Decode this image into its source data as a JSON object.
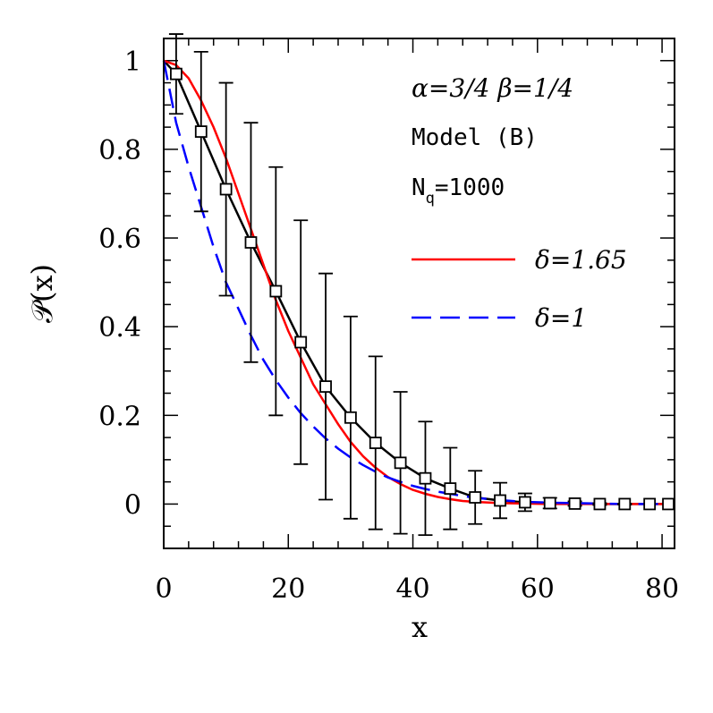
{
  "chart_data": {
    "type": "scatter",
    "xlabel": "x",
    "ylabel": "𝒫(x)",
    "xlim": [
      0,
      82
    ],
    "ylim": [
      -0.1,
      1.05
    ],
    "x_ticks": [
      0,
      20,
      40,
      60,
      80
    ],
    "y_ticks": [
      0,
      0.2,
      0.4,
      0.6,
      0.8,
      1
    ],
    "x_tick_labels": [
      "0",
      "20",
      "40",
      "60",
      "80"
    ],
    "y_tick_labels": [
      "0",
      "0.2",
      "0.4",
      "0.6",
      "0.8",
      "1"
    ],
    "annotations": {
      "params": "α=3/4  β=1/4",
      "model": "Model (B)",
      "nq_prefix": "N",
      "nq_sub": "q",
      "nq_value": "=1000"
    },
    "legend": [
      {
        "label": "δ=1.65",
        "color": "#ff0000",
        "style": "solid"
      },
      {
        "label": "δ=1",
        "color": "#0000ff",
        "style": "dashed"
      }
    ],
    "points": {
      "x": [
        2,
        6,
        10,
        14,
        18,
        22,
        26,
        30,
        34,
        38,
        42,
        46,
        50,
        54,
        58,
        62,
        66,
        70,
        74,
        78,
        81
      ],
      "y": [
        0.97,
        0.84,
        0.71,
        0.59,
        0.48,
        0.365,
        0.265,
        0.195,
        0.138,
        0.093,
        0.058,
        0.035,
        0.015,
        0.008,
        0.004,
        0.002,
        0.001,
        0.0,
        0.0,
        0.0,
        0.0
      ],
      "yerr": [
        0.09,
        0.18,
        0.24,
        0.27,
        0.28,
        0.275,
        0.255,
        0.228,
        0.195,
        0.16,
        0.128,
        0.092,
        0.06,
        0.04,
        0.02,
        0.012,
        0.005,
        0.002,
        0.001,
        0.0,
        0.0
      ]
    },
    "series": [
      {
        "color": "#000000",
        "style": "solid",
        "x": [
          0,
          2,
          6,
          10,
          14,
          18,
          22,
          26,
          30,
          34,
          38,
          42,
          46,
          50,
          54,
          58,
          62,
          66,
          70,
          74,
          78,
          82
        ],
        "y": [
          1.0,
          0.97,
          0.84,
          0.71,
          0.59,
          0.48,
          0.365,
          0.265,
          0.195,
          0.138,
          0.093,
          0.058,
          0.035,
          0.015,
          0.008,
          0.004,
          0.002,
          0.001,
          0.0,
          0.0,
          0.0,
          0.0
        ]
      },
      {
        "name": "δ=1.65",
        "color": "#ff0000",
        "style": "solid",
        "x": [
          0,
          2,
          4,
          6,
          8,
          10,
          12,
          14,
          16,
          18,
          20,
          22,
          24,
          26,
          28,
          30,
          32,
          34,
          36,
          38,
          40,
          42,
          44,
          46,
          48,
          50,
          54,
          58,
          62,
          66,
          70,
          74,
          78,
          82
        ],
        "y": [
          1.0,
          0.99,
          0.96,
          0.91,
          0.85,
          0.78,
          0.7,
          0.62,
          0.54,
          0.46,
          0.39,
          0.33,
          0.27,
          0.225,
          0.18,
          0.14,
          0.108,
          0.082,
          0.061,
          0.045,
          0.032,
          0.023,
          0.016,
          0.011,
          0.007,
          0.005,
          0.002,
          0.001,
          0.0,
          0.0,
          0.0,
          0.0,
          0.0,
          0.0
        ]
      },
      {
        "name": "δ=1",
        "color": "#0000ff",
        "style": "dashed",
        "x": [
          0,
          1,
          2,
          4,
          6,
          8,
          10,
          12,
          14,
          16,
          18,
          20,
          22,
          24,
          26,
          28,
          30,
          32,
          34,
          36,
          38,
          40,
          42,
          44,
          46,
          48,
          50,
          54,
          58,
          62,
          66,
          70,
          74,
          78,
          82
        ],
        "y": [
          1.0,
          0.93,
          0.86,
          0.76,
          0.67,
          0.58,
          0.5,
          0.44,
          0.38,
          0.325,
          0.28,
          0.24,
          0.205,
          0.175,
          0.148,
          0.125,
          0.105,
          0.088,
          0.073,
          0.06,
          0.05,
          0.041,
          0.034,
          0.028,
          0.023,
          0.018,
          0.014,
          0.009,
          0.005,
          0.003,
          0.002,
          0.001,
          0.0,
          0.0,
          0.0
        ]
      }
    ]
  }
}
